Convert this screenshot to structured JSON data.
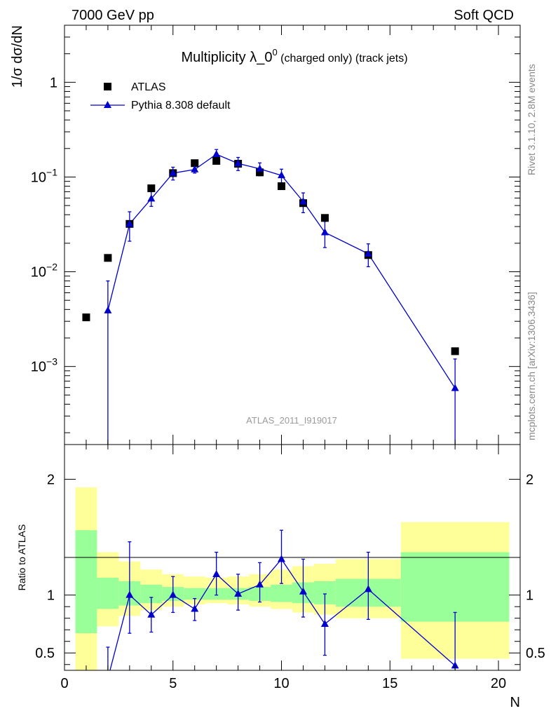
{
  "header": {
    "left": "7000 GeV pp",
    "right": "Soft QCD"
  },
  "side_labels": {
    "rivet": "Rivet 3.1.10,  2.8M events",
    "source": "mcplots.cern.ch [arXiv:1306.3436]"
  },
  "watermark": "ATLAS_2011_I919017",
  "chart_data": [
    {
      "type": "scatter",
      "title_main": "Multiplicity λ_0",
      "title_sup": "0",
      "title_rest": " (charged only) (track jets)",
      "ylabel": "1/σ dσ/dN",
      "yscale": "log",
      "ylim": [
        0.00015,
        4
      ],
      "xlim": [
        0,
        21
      ],
      "y_ticks": [
        {
          "v": 1,
          "b": "1",
          "e": ""
        },
        {
          "v": 0.1,
          "b": "10",
          "e": "−1"
        },
        {
          "v": 0.01,
          "b": "10",
          "e": "−2"
        },
        {
          "v": 0.001,
          "b": "10",
          "e": "−3"
        }
      ],
      "legend": {
        "placement": "top-left",
        "entries": [
          "ATLAS",
          "Pythia 8.308 default"
        ]
      },
      "series": [
        {
          "name": "ATLAS",
          "marker": "square",
          "color": "#000000",
          "points": [
            {
              "x": 1,
              "y": 0.0033
            },
            {
              "x": 2,
              "y": 0.014
            },
            {
              "x": 3,
              "y": 0.032
            },
            {
              "x": 4,
              "y": 0.076
            },
            {
              "x": 5,
              "y": 0.11
            },
            {
              "x": 6,
              "y": 0.14
            },
            {
              "x": 7,
              "y": 0.148
            },
            {
              "x": 8,
              "y": 0.138
            },
            {
              "x": 9,
              "y": 0.112
            },
            {
              "x": 10,
              "y": 0.08
            },
            {
              "x": 11,
              "y": 0.053
            },
            {
              "x": 12,
              "y": 0.037
            },
            {
              "x": 14,
              "y": 0.015
            },
            {
              "x": 18,
              "y": 0.00145
            }
          ]
        },
        {
          "name": "Pythia 8.308 default",
          "marker": "triangle",
          "color": "#0000cc",
          "points": [
            {
              "x": 2,
              "y": 0.0039,
              "lo": 1e-05,
              "hi": 0.008
            },
            {
              "x": 3,
              "y": 0.032,
              "lo": 0.021,
              "hi": 0.043
            },
            {
              "x": 4,
              "y": 0.059,
              "lo": 0.049,
              "hi": 0.07
            },
            {
              "x": 5,
              "y": 0.11,
              "lo": 0.093,
              "hi": 0.127
            },
            {
              "x": 6,
              "y": 0.12,
              "lo": 0.11,
              "hi": 0.131
            },
            {
              "x": 7,
              "y": 0.174,
              "lo": 0.153,
              "hi": 0.195
            },
            {
              "x": 8,
              "y": 0.139,
              "lo": 0.117,
              "hi": 0.161
            },
            {
              "x": 9,
              "y": 0.122,
              "lo": 0.103,
              "hi": 0.141
            },
            {
              "x": 10,
              "y": 0.104,
              "lo": 0.087,
              "hi": 0.121
            },
            {
              "x": 11,
              "y": 0.055,
              "lo": 0.042,
              "hi": 0.068
            },
            {
              "x": 12,
              "y": 0.026,
              "lo": 0.018,
              "hi": 0.034
            },
            {
              "x": 14,
              "y": 0.0155,
              "lo": 0.0113,
              "hi": 0.0197
            },
            {
              "x": 18,
              "y": 0.00059,
              "lo": 1e-05,
              "hi": 0.0012
            }
          ]
        }
      ]
    },
    {
      "type": "line",
      "xlabel": "N",
      "ylabel": "Ratio to ATLAS",
      "xlim": [
        0,
        21
      ],
      "ylim": [
        0.35,
        2.3
      ],
      "x_ticks": [
        0,
        5,
        10,
        15,
        20
      ],
      "y_ticks": [
        0.5,
        1,
        2
      ],
      "reference_line": 1,
      "bands": [
        {
          "x0": 0.5,
          "x1": 1.5,
          "y_lo": 0.35,
          "y_hi": 1.93,
          "g_lo": 0.67,
          "g_hi": 1.56
        },
        {
          "x0": 1.5,
          "x1": 2.5,
          "y_lo": 0.73,
          "y_hi": 1.37,
          "g_lo": 0.88,
          "g_hi": 1.15
        },
        {
          "x0": 2.5,
          "x1": 3.5,
          "y_lo": 0.82,
          "y_hi": 1.29,
          "g_lo": 0.91,
          "g_hi": 1.12
        },
        {
          "x0": 3.5,
          "x1": 4.5,
          "y_lo": 0.87,
          "y_hi": 1.22,
          "g_lo": 0.93,
          "g_hi": 1.09
        },
        {
          "x0": 4.5,
          "x1": 5.5,
          "y_lo": 0.9,
          "y_hi": 1.18,
          "g_lo": 0.95,
          "g_hi": 1.07
        },
        {
          "x0": 5.5,
          "x1": 6.5,
          "y_lo": 0.92,
          "y_hi": 1.16,
          "g_lo": 0.96,
          "g_hi": 1.06
        },
        {
          "x0": 6.5,
          "x1": 7.5,
          "y_lo": 0.93,
          "y_hi": 1.15,
          "g_lo": 0.96,
          "g_hi": 1.06
        },
        {
          "x0": 7.5,
          "x1": 8.5,
          "y_lo": 0.92,
          "y_hi": 1.16,
          "g_lo": 0.96,
          "g_hi": 1.06
        },
        {
          "x0": 8.5,
          "x1": 9.5,
          "y_lo": 0.9,
          "y_hi": 1.18,
          "g_lo": 0.95,
          "g_hi": 1.07
        },
        {
          "x0": 9.5,
          "x1": 10.5,
          "y_lo": 0.88,
          "y_hi": 1.22,
          "g_lo": 0.94,
          "g_hi": 1.09
        },
        {
          "x0": 10.5,
          "x1": 11.5,
          "y_lo": 0.85,
          "y_hi": 1.25,
          "g_lo": 0.93,
          "g_hi": 1.11
        },
        {
          "x0": 11.5,
          "x1": 12.5,
          "y_lo": 0.83,
          "y_hi": 1.27,
          "g_lo": 0.92,
          "g_hi": 1.12
        },
        {
          "x0": 12.5,
          "x1": 15.5,
          "y_lo": 0.8,
          "y_hi": 1.31,
          "g_lo": 0.9,
          "g_hi": 1.14
        },
        {
          "x0": 15.5,
          "x1": 20.5,
          "y_lo": 0.45,
          "y_hi": 1.63,
          "g_lo": 0.77,
          "g_hi": 1.37
        }
      ],
      "series": [
        {
          "name": "Pythia 8.308 default",
          "marker": "triangle",
          "color": "#0000cc",
          "points": [
            {
              "x": 2,
              "y": 0.28,
              "lo": 0.0,
              "hi": 0.55
            },
            {
              "x": 3,
              "y": 1.0,
              "lo": 0.67,
              "hi": 1.46
            },
            {
              "x": 4,
              "y": 0.83,
              "lo": 0.68,
              "hi": 0.98
            },
            {
              "x": 5,
              "y": 1.0,
              "lo": 0.85,
              "hi": 1.16
            },
            {
              "x": 6,
              "y": 0.88,
              "lo": 0.78,
              "hi": 0.97
            },
            {
              "x": 7,
              "y": 1.18,
              "lo": 1.0,
              "hi": 1.37
            },
            {
              "x": 8,
              "y": 1.01,
              "lo": 0.87,
              "hi": 1.18
            },
            {
              "x": 9,
              "y": 1.09,
              "lo": 0.94,
              "hi": 1.28
            },
            {
              "x": 10,
              "y": 1.31,
              "lo": 1.1,
              "hi": 1.56
            },
            {
              "x": 11,
              "y": 1.03,
              "lo": 0.81,
              "hi": 1.31
            },
            {
              "x": 12,
              "y": 0.75,
              "lo": 0.48,
              "hi": 1.01
            },
            {
              "x": 14,
              "y": 1.05,
              "lo": 0.79,
              "hi": 1.37
            },
            {
              "x": 18,
              "y": 0.39,
              "lo": 0.0,
              "hi": 0.85
            }
          ]
        }
      ]
    }
  ]
}
